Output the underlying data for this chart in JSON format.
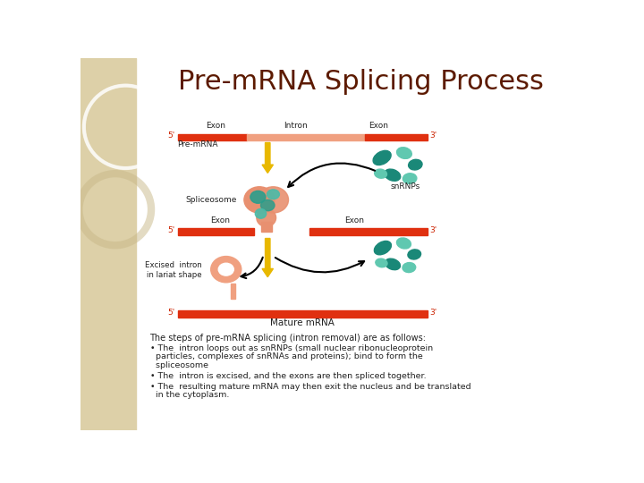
{
  "title": "Pre-mRNA Splicing Process",
  "title_color": "#5C1A00",
  "title_fontsize": 22,
  "bg_color": "#FFFFFF",
  "left_panel_color": "#DDD0A8",
  "body_text_header": "The steps of pre-mRNA splicing (intron removal) are as follows:",
  "body_bullet1_line1": "• The  intron loops out as snRNPs (small nuclear ribonucleoprotein",
  "body_bullet1_line2": "  particles, complexes of snRNAs and proteins); bind to form the",
  "body_bullet1_line3": "  spliceosome",
  "body_bullet2": "• The  intron is excised, and the exons are then spliced together.",
  "body_bullet3_line1": "• The  resulting mature mRNA may then exit the nucleus and be translated",
  "body_bullet3_line2": "  in the cytoplasm.",
  "rna_red": "#E03010",
  "rna_light_red": "#F0A080",
  "teal_dark": "#1A8878",
  "teal_medium": "#3AAA96",
  "teal_light": "#60C8B0",
  "orange_lariat": "#F0A080",
  "spliceosome_orange": "#E89070",
  "spliceosome_teal": "#2A9E8C",
  "spliceosome_teal2": "#4ABBA8",
  "arrow_yellow": "#E8B800",
  "text_dark": "#222222",
  "text_red": "#CC2200"
}
